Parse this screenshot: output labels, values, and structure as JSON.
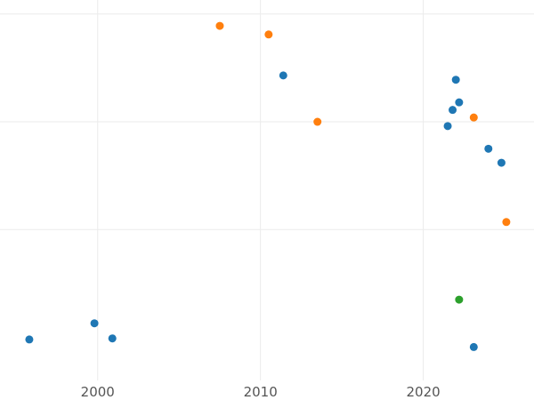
{
  "chart_data": {
    "type": "scatter",
    "title": "",
    "xlabel": "",
    "ylabel": "",
    "xlim": [
      1994,
      2026.8
    ],
    "ylim": [
      -0.4,
      3.13
    ],
    "grid": true,
    "x_ticks": [
      {
        "value": 2000,
        "label": "2000"
      },
      {
        "value": 2010,
        "label": "2010"
      },
      {
        "value": 2020,
        "label": "2020"
      }
    ],
    "y_gridlines": [
      1,
      2,
      3
    ],
    "series": [
      {
        "color": "#1f77b4",
        "points": [
          {
            "x": 1995.8,
            "y": -0.02
          },
          {
            "x": 1999.8,
            "y": 0.13
          },
          {
            "x": 2000.9,
            "y": -0.01
          },
          {
            "x": 2011.4,
            "y": 2.43
          },
          {
            "x": 2021.5,
            "y": 1.96
          },
          {
            "x": 2021.8,
            "y": 2.11
          },
          {
            "x": 2022.0,
            "y": 2.39
          },
          {
            "x": 2022.2,
            "y": 2.18
          },
          {
            "x": 2024.0,
            "y": 1.75
          },
          {
            "x": 2024.8,
            "y": 1.62
          },
          {
            "x": 2023.1,
            "y": -0.09
          }
        ]
      },
      {
        "color": "#ff7f0e",
        "points": [
          {
            "x": 2007.5,
            "y": 2.89
          },
          {
            "x": 2010.5,
            "y": 2.81
          },
          {
            "x": 2013.5,
            "y": 2.0
          },
          {
            "x": 2023.1,
            "y": 2.04
          },
          {
            "x": 2025.1,
            "y": 1.07
          }
        ]
      },
      {
        "color": "#2ca02c",
        "points": [
          {
            "x": 2022.2,
            "y": 0.35
          }
        ]
      }
    ]
  }
}
